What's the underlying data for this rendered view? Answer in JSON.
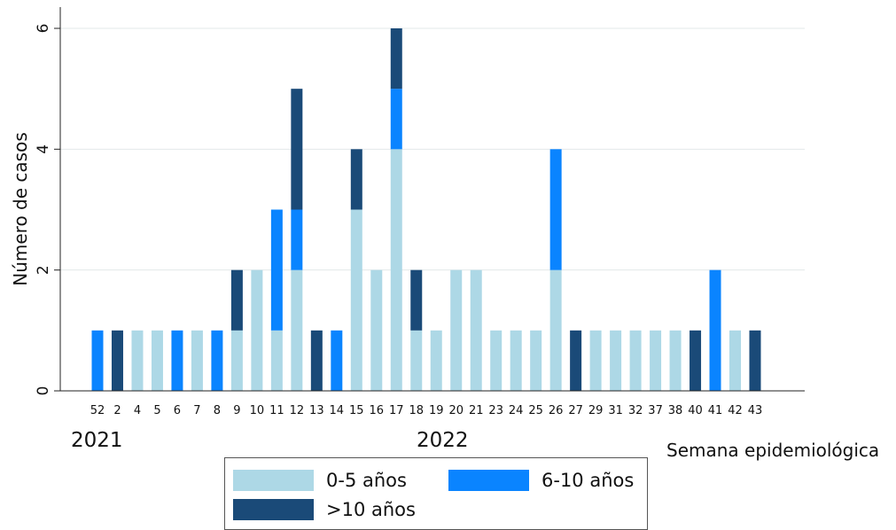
{
  "chart_data": {
    "type": "bar",
    "stacked": true,
    "ylabel": "Número de casos",
    "xlabel": "Semana epidemiológica",
    "ylim": [
      0,
      6
    ],
    "yticks": [
      0,
      2,
      4,
      6
    ],
    "grid": true,
    "legend_position": "bottom",
    "categories": [
      "52",
      "2",
      "4",
      "5",
      "6",
      "7",
      "8",
      "9",
      "10",
      "11",
      "12",
      "13",
      "14",
      "15",
      "16",
      "17",
      "18",
      "19",
      "20",
      "21",
      "23",
      "24",
      "25",
      "26",
      "27",
      "29",
      "31",
      "32",
      "37",
      "38",
      "40",
      "41",
      "42",
      "43"
    ],
    "year_labels": [
      "2021",
      "2022"
    ],
    "series": [
      {
        "name": "0-5 años",
        "color": "#add8e6",
        "values": [
          0,
          0,
          1,
          1,
          0,
          1,
          0,
          1,
          2,
          1,
          2,
          0,
          0,
          3,
          2,
          4,
          1,
          1,
          2,
          2,
          1,
          1,
          1,
          2,
          0,
          1,
          1,
          1,
          1,
          1,
          0,
          0,
          1,
          0
        ]
      },
      {
        "name": "6-10 años",
        "color": "#0a84ff",
        "values": [
          1,
          0,
          0,
          0,
          1,
          0,
          1,
          0,
          0,
          2,
          1,
          0,
          1,
          0,
          0,
          1,
          0,
          0,
          0,
          0,
          0,
          0,
          0,
          2,
          0,
          0,
          0,
          0,
          0,
          0,
          0,
          2,
          0,
          0
        ]
      },
      {
        "name": ">10 años",
        "color": "#1a4a78",
        "values": [
          0,
          1,
          0,
          0,
          0,
          0,
          0,
          1,
          0,
          0,
          2,
          1,
          0,
          1,
          0,
          1,
          1,
          0,
          0,
          0,
          0,
          0,
          0,
          0,
          1,
          0,
          0,
          0,
          0,
          0,
          1,
          0,
          0,
          1
        ]
      }
    ]
  }
}
